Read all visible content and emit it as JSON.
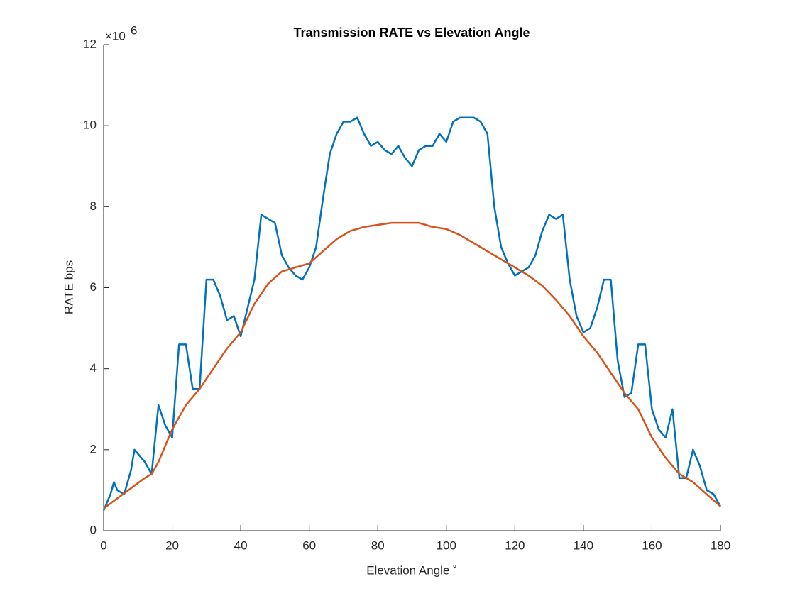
{
  "chart_data": {
    "type": "line",
    "title": "Transmission RATE vs Elevation Angle",
    "x_label": "Elevation Angle ˚",
    "y_label": "RATE bps",
    "y_multiplier": {
      "base": "×10",
      "exponent": "6"
    },
    "xlim": [
      0,
      180
    ],
    "xticks": [
      0,
      20,
      40,
      60,
      80,
      100,
      120,
      140,
      160,
      180
    ],
    "ylim": [
      0,
      12
    ],
    "yticks": [
      0,
      2,
      4,
      6,
      8,
      10,
      12
    ],
    "grid": false,
    "series": [
      {
        "color": "#0072BD",
        "x": [
          0,
          2,
          3,
          4,
          6,
          8,
          9,
          10,
          12,
          14,
          16,
          18,
          20,
          22,
          24,
          26,
          28,
          30,
          32,
          34,
          36,
          38,
          40,
          42,
          44,
          46,
          48,
          50,
          52,
          54,
          56,
          58,
          60,
          62,
          64,
          66,
          68,
          70,
          72,
          74,
          76,
          78,
          80,
          82,
          84,
          86,
          88,
          90,
          92,
          94,
          96,
          98,
          100,
          102,
          104,
          106,
          108,
          110,
          112,
          114,
          116,
          118,
          120,
          122,
          124,
          126,
          128,
          130,
          132,
          134,
          136,
          138,
          140,
          142,
          144,
          146,
          148,
          150,
          152,
          154,
          156,
          158,
          160,
          162,
          164,
          166,
          168,
          170,
          172,
          174,
          176,
          178,
          180
        ],
        "values": [
          0.5,
          0.9,
          1.2,
          1.0,
          0.9,
          1.5,
          2.0,
          1.9,
          1.7,
          1.4,
          3.1,
          2.6,
          2.3,
          4.6,
          4.6,
          3.5,
          3.5,
          6.2,
          6.2,
          5.8,
          5.2,
          5.3,
          4.8,
          5.5,
          6.2,
          7.8,
          7.7,
          7.6,
          6.8,
          6.5,
          6.3,
          6.2,
          6.5,
          7.0,
          8.2,
          9.3,
          9.8,
          10.1,
          10.1,
          10.2,
          9.8,
          9.5,
          9.6,
          9.4,
          9.3,
          9.5,
          9.2,
          9.0,
          9.4,
          9.5,
          9.5,
          9.8,
          9.6,
          10.1,
          10.2,
          10.2,
          10.2,
          10.1,
          9.8,
          8.0,
          7.0,
          6.6,
          6.3,
          6.4,
          6.5,
          6.8,
          7.4,
          7.8,
          7.7,
          7.8,
          6.2,
          5.3,
          4.9,
          5.0,
          5.5,
          6.2,
          6.2,
          4.2,
          3.3,
          3.4,
          4.6,
          4.6,
          3.0,
          2.5,
          2.3,
          3.0,
          1.3,
          1.3,
          2.0,
          1.6,
          1.0,
          0.9,
          0.6
        ]
      },
      {
        "color": "#D95319",
        "x": [
          0,
          4,
          8,
          12,
          14,
          16,
          18,
          20,
          24,
          28,
          32,
          36,
          40,
          44,
          48,
          52,
          56,
          60,
          64,
          68,
          72,
          76,
          80,
          84,
          88,
          92,
          96,
          100,
          104,
          108,
          112,
          116,
          120,
          124,
          128,
          132,
          136,
          140,
          144,
          148,
          152,
          156,
          160,
          164,
          168,
          172,
          176,
          180
        ],
        "values": [
          0.55,
          0.8,
          1.05,
          1.3,
          1.4,
          1.7,
          2.1,
          2.5,
          3.1,
          3.5,
          4.0,
          4.5,
          4.9,
          5.6,
          6.1,
          6.4,
          6.5,
          6.6,
          6.9,
          7.2,
          7.4,
          7.5,
          7.55,
          7.6,
          7.6,
          7.6,
          7.5,
          7.45,
          7.3,
          7.1,
          6.9,
          6.7,
          6.5,
          6.3,
          6.05,
          5.7,
          5.3,
          4.8,
          4.4,
          3.9,
          3.4,
          3.0,
          2.3,
          1.8,
          1.4,
          1.2,
          0.9,
          0.6
        ]
      }
    ]
  }
}
